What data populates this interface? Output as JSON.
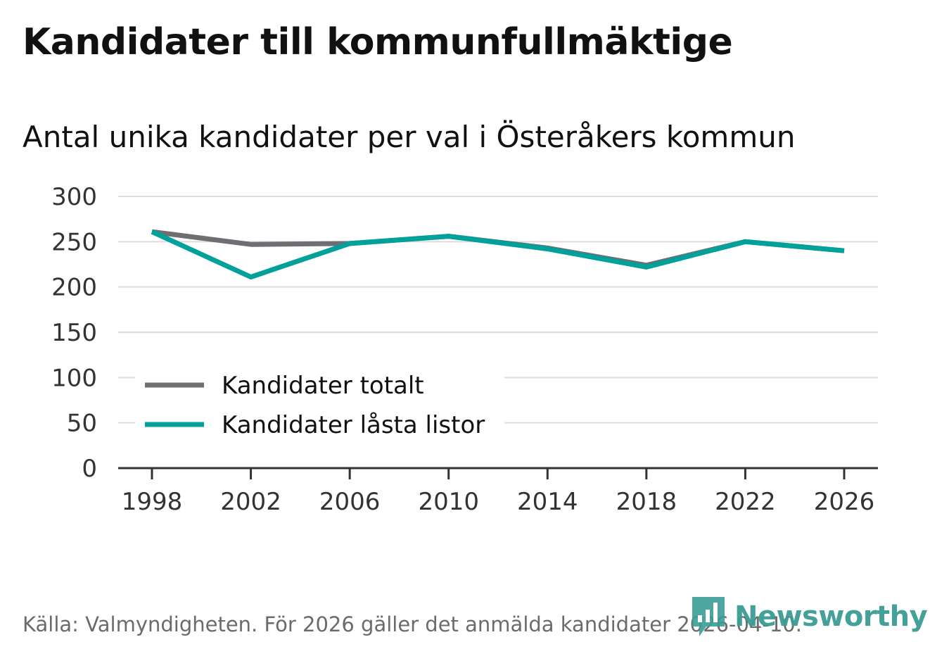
{
  "title": "Kandidater till kommunfullmäktige",
  "subtitle": "Antal unika kandidater per val i Österåkers kommun",
  "source": "Källa: Valmyndigheten. För 2026 gäller det anmälda kandidater 2026-04-10.",
  "brand": {
    "name": "Newsworthy",
    "icon": "bar-chart-speech-icon",
    "color": "#3a9c95"
  },
  "chart_data": {
    "type": "line",
    "x": [
      1998,
      2002,
      2006,
      2010,
      2014,
      2018,
      2022,
      2026
    ],
    "x_tick_labels": [
      "1998",
      "2002",
      "2006",
      "2010",
      "2014",
      "2018",
      "2022",
      "2026"
    ],
    "y_ticks": [
      0,
      50,
      100,
      150,
      200,
      250,
      300
    ],
    "y_tick_labels": [
      "0",
      "50",
      "100",
      "150",
      "200",
      "250",
      "300"
    ],
    "ylim": [
      0,
      300
    ],
    "grid": true,
    "legend_position": "bottom-left",
    "series": [
      {
        "name": "Kandidater totalt",
        "color": "#6e6e73",
        "values": [
          261,
          247,
          248,
          256,
          243,
          224,
          250,
          240
        ]
      },
      {
        "name": "Kandidater låsta listor",
        "color": "#00a19a",
        "values": [
          261,
          211,
          248,
          256,
          242,
          222,
          250,
          240
        ]
      }
    ]
  }
}
